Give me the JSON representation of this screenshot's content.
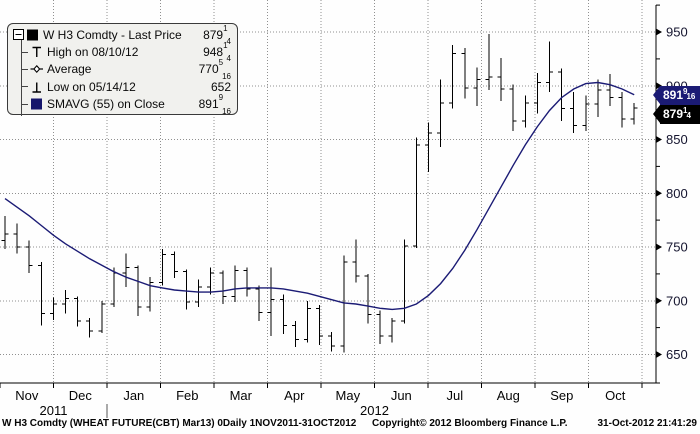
{
  "legend": {
    "items": [
      {
        "key": "last-price",
        "icon": "black-square",
        "label": "W H3 Comdty - Last Price",
        "value": {
          "int": "879",
          "num": "1",
          "den": "4"
        }
      },
      {
        "key": "high",
        "icon": "high-marker",
        "label": "High on 08/10/12",
        "value": {
          "int": "948",
          "num": "1",
          "den": "4"
        }
      },
      {
        "key": "average",
        "icon": "average-marker",
        "label": "Average",
        "value": {
          "int": "770",
          "num": "5",
          "den": "16"
        }
      },
      {
        "key": "low",
        "icon": "low-marker",
        "label": "Low on 05/14/12",
        "value": {
          "int": "652",
          "num": "",
          "den": ""
        }
      },
      {
        "key": "smavg",
        "icon": "navy-square",
        "label": "SMAVG (55) on Close",
        "value": {
          "int": "891",
          "num": "9",
          "den": "16"
        }
      }
    ]
  },
  "price_labels": [
    {
      "key": "smavg",
      "price": 891.5625,
      "bg": "#1b1b75",
      "value": {
        "int": "891",
        "num": "9",
        "den": "16"
      }
    },
    {
      "key": "last-price",
      "price": 879.25,
      "bg": "#000000",
      "value": {
        "int": "879",
        "num": "1",
        "den": "4"
      }
    }
  ],
  "footer": {
    "left": "W H3 Comdty (WHEAT FUTURE(CBT) Mar13) 0Daily 1NOV2011-31OCT2012",
    "center": "Copyright© 2012 Bloomberg Finance L.P.",
    "right": "31-Oct-2012 21:41:29"
  },
  "chart_data": {
    "type": "bar",
    "subtype": "ohlc-daily-rendered-as-weekly-estimates",
    "title": "W H3 Comdty - Last Price",
    "security": "W H3 Comdty (WHEAT FUTURE(CBT) Mar13)",
    "period": "Daily",
    "date_range": "1NOV2011-31OCT2012",
    "ylim": [
      650,
      950
    ],
    "y_ticks": [
      650,
      700,
      750,
      800,
      850,
      900,
      950
    ],
    "x_axis": {
      "months": [
        "Nov",
        "Dec",
        "Jan",
        "Feb",
        "Mar",
        "Apr",
        "May",
        "Jun",
        "Jul",
        "Aug",
        "Sep",
        "Oct"
      ],
      "years": [
        {
          "label": "2011",
          "center_x": 53.5
        },
        {
          "label": "2012",
          "center_x": 374.5
        }
      ]
    },
    "grid": true,
    "legend_position": "top-left",
    "last_price": 879.25,
    "high": {
      "date": "08/10/12",
      "value": 948.25
    },
    "low": {
      "date": "05/14/12",
      "value": 652
    },
    "average": 770.3125,
    "smavg_window": 55,
    "smavg_last": 891.5625,
    "colors": {
      "bars": "#000000",
      "sma": "#1b1b75",
      "grid": "#909090",
      "axis": "#000000",
      "axis_text": "#14142e"
    },
    "bars_ohlc": [
      [
        756,
        779,
        748,
        762
      ],
      [
        762,
        772,
        744,
        750
      ],
      [
        750,
        756,
        726,
        733
      ],
      [
        733,
        736,
        677,
        688
      ],
      [
        688,
        703,
        682,
        697
      ],
      [
        697,
        710,
        688,
        702
      ],
      [
        702,
        704,
        676,
        681
      ],
      [
        681,
        684,
        666,
        672
      ],
      [
        672,
        700,
        670,
        697
      ],
      [
        697,
        731,
        694,
        726
      ],
      [
        726,
        744,
        713,
        731
      ],
      [
        731,
        733,
        686,
        694
      ],
      [
        694,
        722,
        690,
        717
      ],
      [
        717,
        748,
        714,
        743
      ],
      [
        743,
        746,
        721,
        727
      ],
      [
        727,
        729,
        692,
        699
      ],
      [
        699,
        720,
        694,
        713
      ],
      [
        713,
        731,
        706,
        726
      ],
      [
        726,
        728,
        697,
        704
      ],
      [
        704,
        733,
        699,
        728
      ],
      [
        728,
        731,
        704,
        711
      ],
      [
        711,
        714,
        681,
        689
      ],
      [
        689,
        731,
        667,
        701
      ],
      [
        701,
        706,
        669,
        677
      ],
      [
        677,
        681,
        657,
        664
      ],
      [
        664,
        700,
        661,
        693
      ],
      [
        693,
        696,
        659,
        667
      ],
      [
        667,
        671,
        653,
        658
      ],
      [
        658,
        742,
        652,
        736
      ],
      [
        736,
        757,
        717,
        723
      ],
      [
        723,
        725,
        679,
        687
      ],
      [
        687,
        691,
        660,
        667
      ],
      [
        667,
        684,
        661,
        681
      ],
      [
        681,
        757,
        679,
        751
      ],
      [
        751,
        852,
        749,
        845
      ],
      [
        845,
        866,
        820,
        856
      ],
      [
        856,
        906,
        843,
        884
      ],
      [
        884,
        938,
        879,
        930
      ],
      [
        930,
        935,
        888,
        898
      ],
      [
        898,
        917,
        881,
        906
      ],
      [
        906,
        948.25,
        896,
        908
      ],
      [
        908,
        926,
        886,
        897
      ],
      [
        897,
        901,
        858,
        867
      ],
      [
        867,
        891,
        861,
        884
      ],
      [
        884,
        912,
        874,
        903
      ],
      [
        903,
        941,
        894,
        913
      ],
      [
        913,
        916,
        867,
        879
      ],
      [
        879,
        894,
        856,
        863
      ],
      [
        863,
        891,
        858,
        883
      ],
      [
        883,
        906,
        871,
        896
      ],
      [
        896,
        911,
        881,
        889
      ],
      [
        889,
        894,
        861,
        869
      ],
      [
        869,
        884,
        864,
        879.25
      ]
    ],
    "sma_55": [
      795,
      787,
      779,
      770,
      761,
      753,
      746,
      739,
      733,
      727,
      722,
      718,
      714,
      712,
      710,
      709,
      708,
      708,
      709,
      711,
      712,
      712,
      712,
      711,
      709,
      707,
      704,
      701,
      698,
      697,
      695,
      693,
      692,
      693,
      697,
      705,
      716,
      730,
      747,
      766,
      786,
      806,
      826,
      845,
      862,
      877,
      889,
      897,
      902,
      903,
      901,
      897,
      891.5625
    ]
  }
}
